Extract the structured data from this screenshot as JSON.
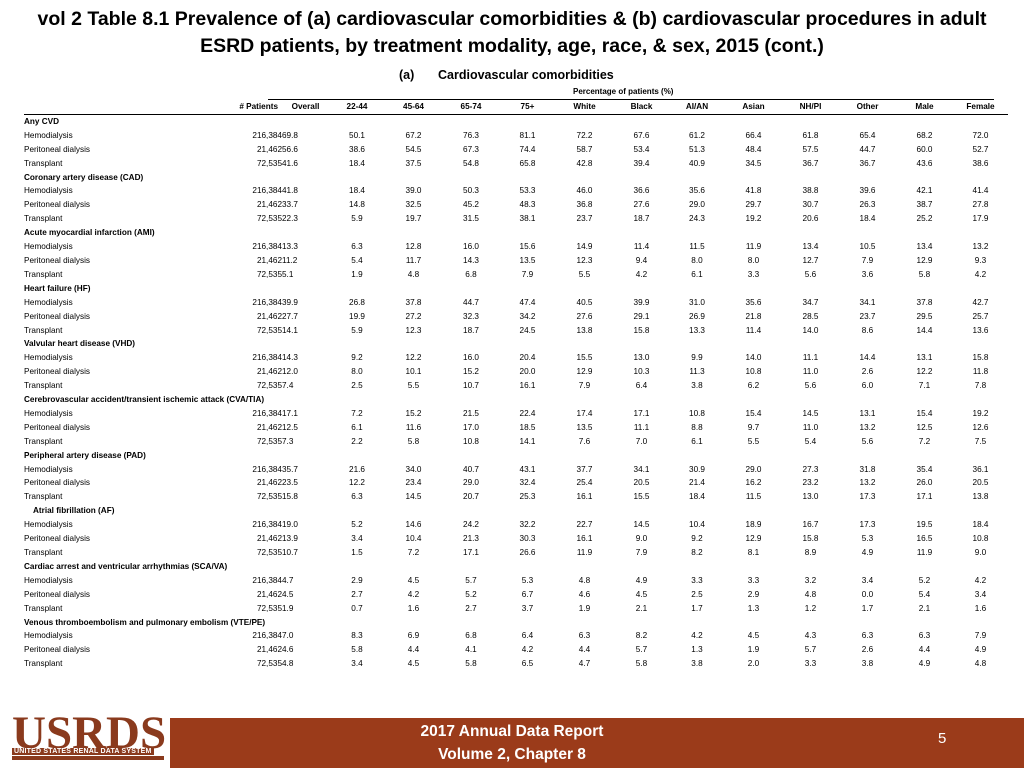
{
  "header": {
    "title_line1": "vol 2 Table 8.1 Prevalence of (a) cardiovascular comorbidities & (b) cardiovascular procedures in adult",
    "title_line2": "ESRD patients, by treatment modality, age, race, & sex, 2015 (cont.)",
    "section_label": "(a)",
    "section_title": "Cardiovascular comorbidities",
    "percent_label": "Percentage of patients (%)"
  },
  "table": {
    "columns": [
      "# Patients",
      "Overall",
      "22-44",
      "45-64",
      "65-74",
      "75+",
      "White",
      "Black",
      "AI/AN",
      "Asian",
      "NH/PI",
      "Other",
      "Male",
      "Female"
    ],
    "groups": [
      {
        "name": "Any CVD",
        "rows": [
          {
            "modality": "Hemodialysis",
            "patients": "216,384",
            "values": [
              "69.8",
              "50.1",
              "67.2",
              "76.3",
              "81.1",
              "72.2",
              "67.6",
              "61.2",
              "66.4",
              "61.8",
              "65.4",
              "68.2",
              "72.0"
            ]
          },
          {
            "modality": "Peritoneal dialysis",
            "patients": "21,462",
            "values": [
              "56.6",
              "38.6",
              "54.5",
              "67.3",
              "74.4",
              "58.7",
              "53.4",
              "51.3",
              "48.4",
              "57.5",
              "44.7",
              "60.0",
              "52.7"
            ]
          },
          {
            "modality": "Transplant",
            "patients": "72,535",
            "values": [
              "41.6",
              "18.4",
              "37.5",
              "54.8",
              "65.8",
              "42.8",
              "39.4",
              "40.9",
              "34.5",
              "36.7",
              "36.7",
              "43.6",
              "38.6"
            ]
          }
        ]
      },
      {
        "name": "Coronary artery disease (CAD)",
        "rows": [
          {
            "modality": "Hemodialysis",
            "patients": "216,384",
            "values": [
              "41.8",
              "18.4",
              "39.0",
              "50.3",
              "53.3",
              "46.0",
              "36.6",
              "35.6",
              "41.8",
              "38.8",
              "39.6",
              "42.1",
              "41.4"
            ]
          },
          {
            "modality": "Peritoneal dialysis",
            "patients": "21,462",
            "values": [
              "33.7",
              "14.8",
              "32.5",
              "45.2",
              "48.3",
              "36.8",
              "27.6",
              "29.0",
              "29.7",
              "30.7",
              "26.3",
              "38.7",
              "27.8"
            ]
          },
          {
            "modality": "Transplant",
            "patients": "72,535",
            "values": [
              "22.3",
              "5.9",
              "19.7",
              "31.5",
              "38.1",
              "23.7",
              "18.7",
              "24.3",
              "19.2",
              "20.6",
              "18.4",
              "25.2",
              "17.9"
            ]
          }
        ]
      },
      {
        "name": "Acute myocardial infarction (AMI)",
        "rows": [
          {
            "modality": "Hemodialysis",
            "patients": "216,384",
            "values": [
              "13.3",
              "6.3",
              "12.8",
              "16.0",
              "15.6",
              "14.9",
              "11.4",
              "11.5",
              "11.9",
              "13.4",
              "10.5",
              "13.4",
              "13.2"
            ]
          },
          {
            "modality": "Peritoneal dialysis",
            "patients": "21,462",
            "values": [
              "11.2",
              "5.4",
              "11.7",
              "14.3",
              "13.5",
              "12.3",
              "9.4",
              "8.0",
              "8.0",
              "12.7",
              "7.9",
              "12.9",
              "9.3"
            ]
          },
          {
            "modality": "Transplant",
            "patients": "72,535",
            "values": [
              "5.1",
              "1.9",
              "4.8",
              "6.8",
              "7.9",
              "5.5",
              "4.2",
              "6.1",
              "3.3",
              "5.6",
              "3.6",
              "5.8",
              "4.2"
            ]
          }
        ]
      },
      {
        "name": "Heart failure (HF)",
        "rows": [
          {
            "modality": "Hemodialysis",
            "patients": "216,384",
            "values": [
              "39.9",
              "26.8",
              "37.8",
              "44.7",
              "47.4",
              "40.5",
              "39.9",
              "31.0",
              "35.6",
              "34.7",
              "34.1",
              "37.8",
              "42.7"
            ]
          },
          {
            "modality": "Peritoneal dialysis",
            "patients": "21,462",
            "values": [
              "27.7",
              "19.9",
              "27.2",
              "32.3",
              "34.2",
              "27.6",
              "29.1",
              "26.9",
              "21.8",
              "28.5",
              "23.7",
              "29.5",
              "25.7"
            ]
          },
          {
            "modality": "Transplant",
            "patients": "72,535",
            "values": [
              "14.1",
              "5.9",
              "12.3",
              "18.7",
              "24.5",
              "13.8",
              "15.8",
              "13.3",
              "11.4",
              "14.0",
              "8.6",
              "14.4",
              "13.6"
            ]
          }
        ]
      },
      {
        "name": "Valvular heart disease (VHD)",
        "rows": [
          {
            "modality": "Hemodialysis",
            "patients": "216,384",
            "values": [
              "14.3",
              "9.2",
              "12.2",
              "16.0",
              "20.4",
              "15.5",
              "13.0",
              "9.9",
              "14.0",
              "11.1",
              "14.4",
              "13.1",
              "15.8"
            ]
          },
          {
            "modality": "Peritoneal dialysis",
            "patients": "21,462",
            "values": [
              "12.0",
              "8.0",
              "10.1",
              "15.2",
              "20.0",
              "12.9",
              "10.3",
              "11.3",
              "10.8",
              "11.0",
              "2.6",
              "12.2",
              "11.8"
            ]
          },
          {
            "modality": "Transplant",
            "patients": "72,535",
            "values": [
              "7.4",
              "2.5",
              "5.5",
              "10.7",
              "16.1",
              "7.9",
              "6.4",
              "3.8",
              "6.2",
              "5.6",
              "6.0",
              "7.1",
              "7.8"
            ]
          }
        ]
      },
      {
        "name": "Cerebrovascular accident/transient ischemic attack (CVA/TIA)",
        "rows": [
          {
            "modality": "Hemodialysis",
            "patients": "216,384",
            "values": [
              "17.1",
              "7.2",
              "15.2",
              "21.5",
              "22.4",
              "17.4",
              "17.1",
              "10.8",
              "15.4",
              "14.5",
              "13.1",
              "15.4",
              "19.2"
            ]
          },
          {
            "modality": "Peritoneal dialysis",
            "patients": "21,462",
            "values": [
              "12.5",
              "6.1",
              "11.6",
              "17.0",
              "18.5",
              "13.5",
              "11.1",
              "8.8",
              "9.7",
              "11.0",
              "13.2",
              "12.5",
              "12.6"
            ]
          },
          {
            "modality": "Transplant",
            "patients": "72,535",
            "values": [
              "7.3",
              "2.2",
              "5.8",
              "10.8",
              "14.1",
              "7.6",
              "7.0",
              "6.1",
              "5.5",
              "5.4",
              "5.6",
              "7.2",
              "7.5"
            ]
          }
        ]
      },
      {
        "name": "Peripheral artery disease (PAD)",
        "rows": [
          {
            "modality": "Hemodialysis",
            "patients": "216,384",
            "values": [
              "35.7",
              "21.6",
              "34.0",
              "40.7",
              "43.1",
              "37.7",
              "34.1",
              "30.9",
              "29.0",
              "27.3",
              "31.8",
              "35.4",
              "36.1"
            ]
          },
          {
            "modality": "Peritoneal dialysis",
            "patients": "21,462",
            "values": [
              "23.5",
              "12.2",
              "23.4",
              "29.0",
              "32.4",
              "25.4",
              "20.5",
              "21.4",
              "16.2",
              "23.2",
              "13.2",
              "26.0",
              "20.5"
            ]
          },
          {
            "modality": "Transplant",
            "patients": "72,535",
            "values": [
              "15.8",
              "6.3",
              "14.5",
              "20.7",
              "25.3",
              "16.1",
              "15.5",
              "18.4",
              "11.5",
              "13.0",
              "17.3",
              "17.1",
              "13.8"
            ]
          }
        ]
      },
      {
        "name": "Atrial fibrillation (AF)",
        "indent": true,
        "rows": [
          {
            "modality": "Hemodialysis",
            "patients": "216,384",
            "values": [
              "19.0",
              "5.2",
              "14.6",
              "24.2",
              "32.2",
              "22.7",
              "14.5",
              "10.4",
              "18.9",
              "16.7",
              "17.3",
              "19.5",
              "18.4"
            ]
          },
          {
            "modality": "Peritoneal dialysis",
            "patients": "21,462",
            "values": [
              "13.9",
              "3.4",
              "10.4",
              "21.3",
              "30.3",
              "16.1",
              "9.0",
              "9.2",
              "12.9",
              "15.8",
              "5.3",
              "16.5",
              "10.8"
            ]
          },
          {
            "modality": "Transplant",
            "patients": "72,535",
            "values": [
              "10.7",
              "1.5",
              "7.2",
              "17.1",
              "26.6",
              "11.9",
              "7.9",
              "8.2",
              "8.1",
              "8.9",
              "4.9",
              "11.9",
              "9.0"
            ]
          }
        ]
      },
      {
        "name": "Cardiac arrest and ventricular arrhythmias (SCA/VA)",
        "rows": [
          {
            "modality": "Hemodialysis",
            "patients": "216,384",
            "values": [
              "4.7",
              "2.9",
              "4.5",
              "5.7",
              "5.3",
              "4.8",
              "4.9",
              "3.3",
              "3.3",
              "3.2",
              "3.4",
              "5.2",
              "4.2"
            ]
          },
          {
            "modality": "Peritoneal dialysis",
            "patients": "21,462",
            "values": [
              "4.5",
              "2.7",
              "4.2",
              "5.2",
              "6.7",
              "4.6",
              "4.5",
              "2.5",
              "2.9",
              "4.8",
              "0.0",
              "5.4",
              "3.4"
            ]
          },
          {
            "modality": "Transplant",
            "patients": "72,535",
            "values": [
              "1.9",
              "0.7",
              "1.6",
              "2.7",
              "3.7",
              "1.9",
              "2.1",
              "1.7",
              "1.3",
              "1.2",
              "1.7",
              "2.1",
              "1.6"
            ]
          }
        ]
      },
      {
        "name": "Venous thromboembolism and pulmonary embolism (VTE/PE)",
        "rows": [
          {
            "modality": "Hemodialysis",
            "patients": "216,384",
            "values": [
              "7.0",
              "8.3",
              "6.9",
              "6.8",
              "6.4",
              "6.3",
              "8.2",
              "4.2",
              "4.5",
              "4.3",
              "6.3",
              "6.3",
              "7.9"
            ]
          },
          {
            "modality": "Peritoneal dialysis",
            "patients": "21,462",
            "values": [
              "4.6",
              "5.8",
              "4.4",
              "4.1",
              "4.2",
              "4.4",
              "5.7",
              "1.3",
              "1.9",
              "5.7",
              "2.6",
              "4.4",
              "4.9"
            ]
          },
          {
            "modality": "Transplant",
            "patients": "72,535",
            "values": [
              "4.8",
              "3.4",
              "4.5",
              "5.8",
              "6.5",
              "4.7",
              "5.8",
              "3.8",
              "2.0",
              "3.3",
              "3.8",
              "4.9",
              "4.8"
            ]
          }
        ]
      }
    ]
  },
  "footer": {
    "logo_text": "USRDS",
    "logo_subtext": "UNITED STATES RENAL DATA SYSTEM",
    "line1": "2017 Annual Data Report",
    "line2": "Volume 2, Chapter 8",
    "page_number": "5",
    "colors": {
      "footer_bg": "#9b3b1a",
      "logo": "#8a3a1d"
    }
  }
}
